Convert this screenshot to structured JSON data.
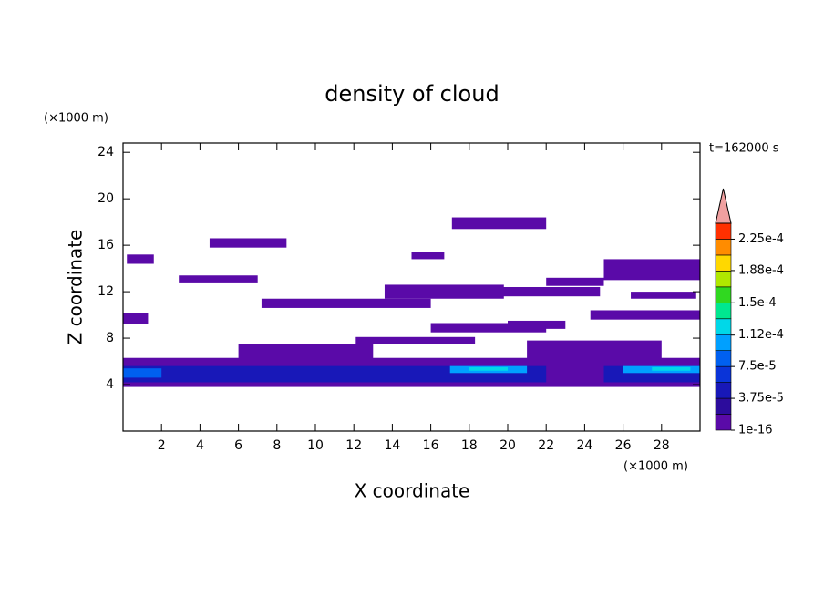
{
  "chart_data": {
    "type": "contour",
    "title": "density of cloud",
    "xlabel": "X coordinate",
    "ylabel": "Z coordinate",
    "xunit": "(×1000 m)",
    "yunit": "(×1000 m)",
    "annotation": "t=162000 s",
    "xlim": [
      0,
      30
    ],
    "ylim": [
      0,
      24.8
    ],
    "xticks": [
      2,
      4,
      6,
      8,
      10,
      12,
      14,
      16,
      18,
      20,
      22,
      24,
      26,
      28
    ],
    "yticks": [
      4,
      8,
      12,
      16,
      20,
      24
    ],
    "regions": [
      {
        "x": [
          0,
          30
        ],
        "z": [
          3.8,
          6.3
        ],
        "color": "#5a0aa8"
      },
      {
        "x": [
          6,
          13
        ],
        "z": [
          6.0,
          7.5
        ],
        "color": "#5a0aa8"
      },
      {
        "x": [
          21,
          28
        ],
        "z": [
          6.0,
          7.8
        ],
        "color": "#5a0aa8"
      },
      {
        "x": [
          12.1,
          18.3
        ],
        "z": [
          7.5,
          8.1
        ],
        "color": "#5a0aa8"
      },
      {
        "x": [
          16,
          22
        ],
        "z": [
          8.5,
          9.3
        ],
        "color": "#5a0aa8"
      },
      {
        "x": [
          20,
          23
        ],
        "z": [
          8.8,
          9.5
        ],
        "color": "#5a0aa8"
      },
      {
        "x": [
          0,
          1.3
        ],
        "z": [
          9.2,
          10.2
        ],
        "color": "#5a0aa8"
      },
      {
        "x": [
          24.3,
          30
        ],
        "z": [
          9.6,
          10.4
        ],
        "color": "#5a0aa8"
      },
      {
        "x": [
          7.2,
          16
        ],
        "z": [
          10.6,
          11.4
        ],
        "color": "#5a0aa8"
      },
      {
        "x": [
          13.6,
          19.8
        ],
        "z": [
          11.4,
          12.6
        ],
        "color": "#5a0aa8"
      },
      {
        "x": [
          19.5,
          24.8
        ],
        "z": [
          11.6,
          12.4
        ],
        "color": "#5a0aa8"
      },
      {
        "x": [
          26.4,
          29.8
        ],
        "z": [
          11.4,
          12.0
        ],
        "color": "#5a0aa8"
      },
      {
        "x": [
          22,
          25
        ],
        "z": [
          12.5,
          13.2
        ],
        "color": "#5a0aa8"
      },
      {
        "x": [
          25,
          30
        ],
        "z": [
          13.0,
          14.8
        ],
        "color": "#5a0aa8"
      },
      {
        "x": [
          2.9,
          7
        ],
        "z": [
          12.8,
          13.4
        ],
        "color": "#5a0aa8"
      },
      {
        "x": [
          0.2,
          1.6
        ],
        "z": [
          14.4,
          15.2
        ],
        "color": "#5a0aa8"
      },
      {
        "x": [
          15,
          16.7
        ],
        "z": [
          14.8,
          15.4
        ],
        "color": "#5a0aa8"
      },
      {
        "x": [
          4.5,
          8.5
        ],
        "z": [
          15.8,
          16.6
        ],
        "color": "#5a0aa8"
      },
      {
        "x": [
          17.1,
          22
        ],
        "z": [
          17.4,
          18.4
        ],
        "color": "#5a0aa8"
      },
      {
        "x": [
          0,
          22
        ],
        "z": [
          4.2,
          5.6
        ],
        "color": "#1818b8"
      },
      {
        "x": [
          25,
          30
        ],
        "z": [
          4.2,
          5.6
        ],
        "color": "#1818b8"
      },
      {
        "x": [
          0,
          2
        ],
        "z": [
          4.6,
          5.4
        ],
        "color": "#0060f0"
      },
      {
        "x": [
          17,
          21
        ],
        "z": [
          5.0,
          5.6
        ],
        "color": "#00a0ff"
      },
      {
        "x": [
          26,
          30
        ],
        "z": [
          5.0,
          5.6
        ],
        "color": "#00a0ff"
      },
      {
        "x": [
          18,
          20
        ],
        "z": [
          5.2,
          5.5
        ],
        "color": "#00d8e8"
      },
      {
        "x": [
          27.5,
          29.5
        ],
        "z": [
          5.2,
          5.5
        ],
        "color": "#00d8e8"
      }
    ],
    "colorbar": {
      "lim": [
        0,
        0.00024375
      ],
      "colors": [
        "#5a0aa8",
        "#2c0c9c",
        "#1818b8",
        "#0a34d8",
        "#0060f0",
        "#00a0ff",
        "#00d8e8",
        "#00e890",
        "#30d820",
        "#b0e800",
        "#ffd800",
        "#ff8c00",
        "#ff3000"
      ],
      "extend_color": "#f0a0a0",
      "ticks": [
        {
          "value": 1e-16,
          "label": "1e-16"
        },
        {
          "value": 3.75e-05,
          "label": "3.75e-5"
        },
        {
          "value": 7.5e-05,
          "label": "7.5e-5"
        },
        {
          "value": 0.000112,
          "label": "1.12e-4"
        },
        {
          "value": 0.00015,
          "label": "1.5e-4"
        },
        {
          "value": 0.000188,
          "label": "1.88e-4"
        },
        {
          "value": 0.000225,
          "label": "2.25e-4"
        }
      ]
    }
  }
}
